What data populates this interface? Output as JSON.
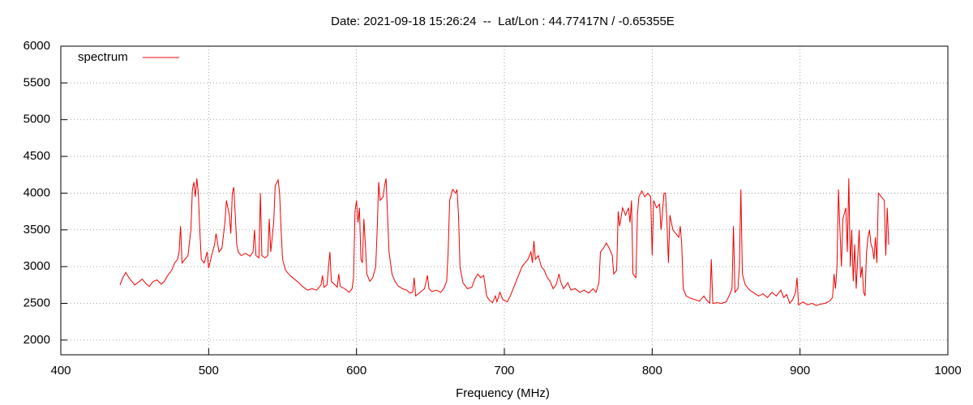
{
  "chart_data": {
    "type": "line",
    "title": "Date: 2021-09-18 15:26:24  --  Lat/Lon : 44.77417N / -0.65355E",
    "x_label": "Frequency (MHz)",
    "xlim": [
      400,
      1000
    ],
    "xticks": [
      400,
      500,
      600,
      700,
      800,
      900,
      1000
    ],
    "ylim": [
      1800,
      6000
    ],
    "yticks": [
      2000,
      2500,
      3000,
      3500,
      4000,
      4500,
      5000,
      5500,
      6000
    ],
    "grid": true,
    "legend": "top-left",
    "x": [
      440,
      442,
      444,
      446,
      448,
      450,
      452,
      455,
      458,
      460,
      462,
      465,
      468,
      470,
      472,
      475,
      477,
      479,
      480,
      481,
      482,
      484,
      486,
      488,
      489,
      490,
      491,
      492,
      493,
      494,
      495,
      497,
      499,
      500,
      502,
      504,
      505,
      507,
      509,
      511,
      512,
      514,
      515,
      516,
      517,
      518,
      519,
      520,
      522,
      525,
      528,
      530,
      531,
      532,
      534,
      535,
      536,
      538,
      540,
      541,
      542,
      544,
      545,
      547,
      548,
      549,
      550,
      552,
      555,
      558,
      561,
      564,
      567,
      570,
      573,
      576,
      577,
      578,
      580,
      582,
      583,
      585,
      587,
      588,
      589,
      592,
      595,
      597,
      598,
      599,
      600,
      601,
      602,
      603,
      604,
      605,
      606,
      607,
      609,
      611,
      613,
      614,
      615,
      616,
      618,
      619,
      620,
      621,
      622,
      624,
      626,
      628,
      631,
      634,
      636,
      638,
      639,
      640,
      643,
      646,
      648,
      649,
      651,
      654,
      657,
      659,
      661,
      662,
      663,
      665,
      667,
      668,
      669,
      670,
      672,
      675,
      678,
      680,
      682,
      684,
      686,
      687,
      688,
      690,
      692,
      694,
      695,
      697,
      699,
      702,
      704,
      706,
      708,
      710,
      712,
      714,
      716,
      718,
      719,
      720,
      721,
      723,
      725,
      727,
      729,
      731,
      733,
      735,
      737,
      738,
      740,
      743,
      745,
      748,
      751,
      754,
      757,
      760,
      762,
      764,
      765,
      767,
      769,
      771,
      773,
      774,
      776,
      777,
      778,
      780,
      782,
      784,
      785,
      786,
      787,
      789,
      790,
      791,
      793,
      795,
      797,
      799,
      800,
      801,
      803,
      805,
      806,
      807,
      808,
      809,
      810,
      811,
      812,
      814,
      816,
      818,
      819,
      820,
      821,
      823,
      826,
      829,
      832,
      835,
      837,
      839,
      840,
      841,
      844,
      847,
      850,
      852,
      854,
      855,
      856,
      858,
      859,
      860,
      861,
      863,
      866,
      869,
      872,
      875,
      878,
      881,
      884,
      887,
      889,
      891,
      893,
      895,
      897,
      898,
      899,
      902,
      905,
      908,
      911,
      914,
      917,
      920,
      922,
      923,
      924,
      925,
      926,
      927,
      928,
      929,
      931,
      932,
      933,
      934,
      935,
      936,
      937,
      938,
      939,
      940,
      941,
      942,
      943,
      944,
      945,
      946,
      947,
      948,
      949,
      950,
      951,
      952,
      953,
      955,
      957,
      958,
      959,
      960
    ],
    "series": [
      {
        "name": "spectrum",
        "color": "#ee0000",
        "values": [
          2750,
          2850,
          2920,
          2850,
          2800,
          2750,
          2780,
          2830,
          2760,
          2730,
          2790,
          2820,
          2760,
          2800,
          2870,
          2950,
          3050,
          3100,
          3200,
          3550,
          3050,
          3100,
          3150,
          3500,
          4050,
          4150,
          3950,
          4200,
          4000,
          3500,
          3100,
          3050,
          3200,
          2980,
          3150,
          3300,
          3450,
          3200,
          3250,
          3600,
          3900,
          3700,
          3450,
          4000,
          4080,
          3700,
          3300,
          3200,
          3150,
          3180,
          3140,
          3200,
          3500,
          3150,
          3120,
          4000,
          3150,
          3120,
          3150,
          3650,
          3200,
          3600,
          4100,
          4180,
          4000,
          3500,
          3100,
          2950,
          2880,
          2830,
          2780,
          2720,
          2680,
          2700,
          2680,
          2750,
          2880,
          2720,
          2750,
          3200,
          2800,
          2760,
          2720,
          2900,
          2730,
          2700,
          2650,
          2700,
          2850,
          3750,
          3900,
          3600,
          3800,
          3100,
          3050,
          3650,
          3300,
          2900,
          2800,
          2850,
          3000,
          3500,
          4150,
          3900,
          3950,
          4100,
          4200,
          3700,
          3200,
          2900,
          2800,
          2740,
          2700,
          2680,
          2640,
          2650,
          2850,
          2600,
          2650,
          2700,
          2880,
          2700,
          2660,
          2680,
          2650,
          2700,
          2800,
          3200,
          3900,
          4050,
          4000,
          4050,
          3700,
          3000,
          2780,
          2700,
          2720,
          2830,
          2900,
          2850,
          2880,
          2750,
          2600,
          2540,
          2510,
          2600,
          2520,
          2650,
          2550,
          2520,
          2600,
          2700,
          2800,
          2900,
          3000,
          3050,
          3100,
          3200,
          3050,
          3350,
          3100,
          3150,
          3000,
          2950,
          2850,
          2800,
          2700,
          2750,
          2900,
          2800,
          2700,
          2780,
          2680,
          2700,
          2650,
          2680,
          2640,
          2700,
          2650,
          2780,
          3200,
          3250,
          3320,
          3250,
          3150,
          2900,
          2950,
          3750,
          3550,
          3800,
          3700,
          3800,
          3600,
          3900,
          2900,
          2850,
          3700,
          3950,
          4030,
          3950,
          4000,
          3950,
          3150,
          3900,
          3800,
          3850,
          3500,
          3750,
          4000,
          4000,
          3600,
          3050,
          3700,
          3500,
          3450,
          3400,
          3550,
          3300,
          2700,
          2600,
          2570,
          2550,
          2530,
          2600,
          2540,
          2500,
          3100,
          2500,
          2510,
          2500,
          2520,
          2600,
          2700,
          3550,
          2650,
          2700,
          3000,
          4050,
          2900,
          2750,
          2680,
          2640,
          2600,
          2630,
          2580,
          2650,
          2600,
          2680,
          2580,
          2620,
          2500,
          2550,
          2650,
          2850,
          2480,
          2520,
          2480,
          2500,
          2470,
          2490,
          2500,
          2530,
          2580,
          2900,
          2700,
          3000,
          4050,
          3500,
          3000,
          3650,
          3800,
          3200,
          4200,
          3000,
          3500,
          2800,
          3300,
          2700,
          3100,
          3500,
          2850,
          3000,
          2650,
          2600,
          3200,
          3400,
          3500,
          3300,
          3250,
          3100,
          3400,
          3050,
          4000,
          3950,
          3900,
          3150,
          3800,
          3300
        ]
      }
    ]
  }
}
